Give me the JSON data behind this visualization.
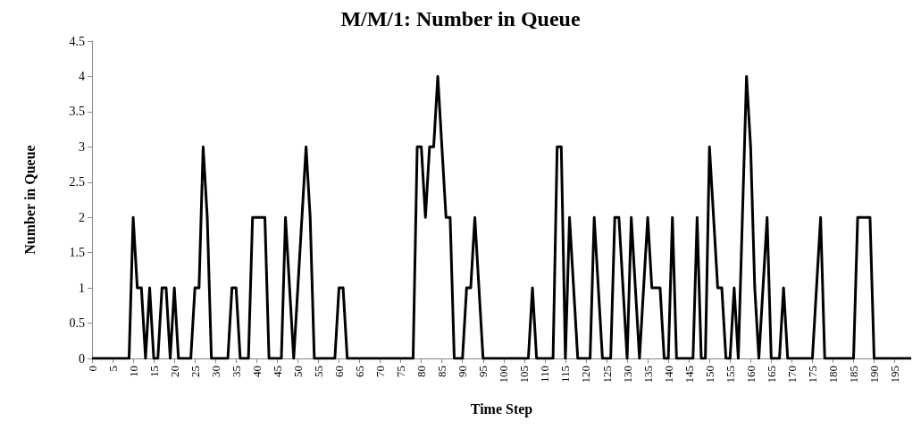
{
  "chart_data": {
    "type": "line",
    "title": "M/M/1: Number in Queue",
    "xlabel": "Time Step",
    "ylabel": "Number in Queue",
    "categories": [
      "0",
      null,
      null,
      null,
      null,
      "5",
      null,
      null,
      null,
      null,
      "10",
      null,
      null,
      null,
      null,
      "15",
      null,
      null,
      null,
      null,
      "20",
      null,
      null,
      null,
      null,
      "25",
      null,
      null,
      null,
      null,
      "30",
      null,
      null,
      null,
      null,
      "35",
      null,
      null,
      null,
      null,
      "40",
      null,
      null,
      null,
      null,
      "45",
      null,
      null,
      null,
      null,
      "50",
      null,
      null,
      null,
      null,
      "55",
      null,
      null,
      null,
      null,
      "60",
      null,
      null,
      null,
      null,
      "65",
      null,
      null,
      null,
      null,
      "70",
      null,
      null,
      null,
      null,
      "75",
      null,
      null,
      null,
      null,
      "80",
      null,
      null,
      null,
      null,
      "85",
      null,
      null,
      null,
      null,
      "90",
      null,
      null,
      null,
      null,
      "95",
      null,
      null,
      null,
      null,
      "100",
      null,
      null,
      null,
      null,
      "105",
      null,
      null,
      null,
      null,
      "110",
      null,
      null,
      null,
      null,
      "115",
      null,
      null,
      null,
      null,
      "120",
      null,
      null,
      null,
      null,
      "125",
      null,
      null,
      null,
      null,
      "130",
      null,
      null,
      null,
      null,
      "135",
      null,
      null,
      null,
      null,
      "140",
      null,
      null,
      null,
      null,
      "145",
      null,
      null,
      null,
      null,
      "150",
      null,
      null,
      null,
      null,
      "155",
      null,
      null,
      null,
      null,
      "160",
      null,
      null,
      null,
      null,
      "165",
      null,
      null,
      null,
      null,
      "170",
      null,
      null,
      null,
      null,
      "175",
      null,
      null,
      null,
      null,
      "180",
      null,
      null,
      null,
      null,
      "185",
      null,
      null,
      null,
      null,
      "190",
      null,
      null,
      null,
      null,
      "195",
      null,
      null,
      null,
      null
    ],
    "values": [
      0,
      0,
      0,
      0,
      0,
      0,
      0,
      0,
      0,
      0,
      2,
      1,
      1,
      0,
      1,
      0,
      0,
      1,
      1,
      0,
      1,
      0,
      0,
      0,
      0,
      1,
      1,
      3,
      2,
      0,
      0,
      0,
      0,
      0,
      1,
      1,
      0,
      0,
      0,
      2,
      2,
      2,
      2,
      0,
      0,
      0,
      0,
      2,
      1,
      0,
      1,
      2,
      3,
      2,
      0,
      0,
      0,
      0,
      0,
      0,
      1,
      1,
      0,
      0,
      0,
      0,
      0,
      0,
      0,
      0,
      0,
      0,
      0,
      0,
      0,
      0,
      0,
      0,
      0,
      3,
      3,
      2,
      3,
      3,
      4,
      3,
      2,
      2,
      0,
      0,
      0,
      1,
      1,
      2,
      1,
      0,
      0,
      0,
      0,
      0,
      0,
      0,
      0,
      0,
      0,
      0,
      0,
      1,
      0,
      0,
      0,
      0,
      0,
      3,
      3,
      0,
      2,
      1,
      0,
      0,
      0,
      0,
      2,
      1,
      0,
      0,
      0,
      2,
      2,
      1,
      0,
      2,
      1,
      0,
      1,
      2,
      1,
      1,
      1,
      0,
      0,
      2,
      0,
      0,
      0,
      0,
      0,
      2,
      0,
      0,
      3,
      2,
      1,
      1,
      0,
      0,
      1,
      0,
      2,
      4,
      3,
      1,
      0,
      1,
      2,
      0,
      0,
      0,
      1,
      0,
      0,
      0,
      0,
      0,
      0,
      0,
      1,
      2,
      0,
      0,
      0,
      0,
      0,
      0,
      0,
      0,
      2,
      2,
      2,
      2,
      0,
      0,
      0,
      0,
      0,
      0,
      0,
      0,
      0,
      0
    ],
    "color": "#000000",
    "ylim": [
      0,
      4.5
    ],
    "yticks": [
      0,
      0.5,
      1,
      1.5,
      2,
      2.5,
      3,
      3.5,
      4,
      4.5
    ],
    "grid": false,
    "marker": "none",
    "line_style": "solid"
  }
}
